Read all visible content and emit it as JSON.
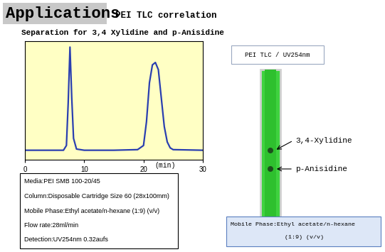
{
  "header": {
    "title": "Applications",
    "subtitle": "PEI TLC correlation"
  },
  "heading": "Separation for 3,4 Xylidine and p-Anisidine",
  "chart_data": {
    "type": "line",
    "xlabel": "(min)",
    "x": [
      0,
      5,
      6.5,
      7,
      7.3,
      7.6,
      7.9,
      8.2,
      8.7,
      10,
      15,
      19,
      20,
      20.5,
      21,
      21.5,
      22,
      22.5,
      23,
      23.5,
      24,
      24.5,
      25,
      30
    ],
    "values": [
      8,
      8,
      8,
      12,
      48,
      95,
      52,
      18,
      9,
      8,
      8,
      8.5,
      12,
      32,
      65,
      80,
      82,
      76,
      52,
      28,
      15,
      10,
      8.5,
      8
    ],
    "color": "#2a3fb0",
    "xlim": [
      0,
      30
    ],
    "xticks": [
      0,
      10,
      20,
      30
    ],
    "ylim": [
      0,
      100
    ],
    "tick_labels": "x"
  },
  "conditions": [
    "Media:PEI SMB 100-20/45",
    "Column:Disposable Cartridge Size 60 (28x100mm)",
    "Mobile Phase:Ethyl acetate/n-hexane (1:9) (v/v)",
    "Flow rate:28ml/min",
    "Detection:UV254nm 0.32aufs"
  ],
  "tlc": {
    "title": "PEI TLC / UV254nm",
    "spots": [
      "3,4-Xylidine",
      "p-Anisidine"
    ],
    "mobile_phase": [
      "Mobile Phase:Ethyl acetate/n-hexane",
      "(1:9) (v/v)"
    ]
  }
}
